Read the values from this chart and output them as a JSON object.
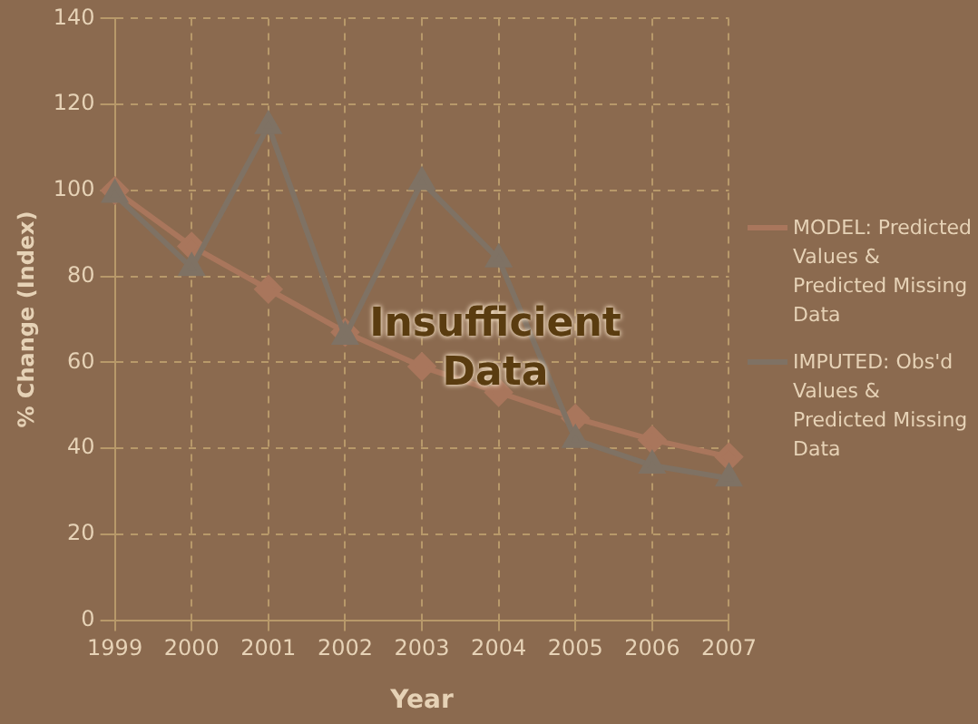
{
  "chart_data": {
    "type": "line",
    "xlabel": "Year",
    "ylabel": "% Change (Index)",
    "categories": [
      "1999",
      "2000",
      "2001",
      "2002",
      "2003",
      "2004",
      "2005",
      "2006",
      "2007"
    ],
    "series": [
      {
        "name": "MODEL: Predicted Values & Predicted Missing Data",
        "color": "#a9765c",
        "marker": "diamond",
        "values": [
          100,
          87,
          77,
          67,
          59,
          53,
          47,
          42,
          38
        ]
      },
      {
        "name": "IMPUTED: Obs'd Values & Predicted Missing Data",
        "color": "#7f7264",
        "marker": "triangle",
        "values": [
          99,
          82,
          115,
          66,
          102,
          84,
          42,
          36,
          33
        ]
      }
    ],
    "ylim": [
      0,
      140
    ],
    "yticks": [
      0,
      20,
      40,
      60,
      80,
      100,
      120,
      140
    ],
    "grid": true,
    "legend": "right",
    "line_style": "solid",
    "annotations": [
      "Insufficient Data"
    ]
  }
}
